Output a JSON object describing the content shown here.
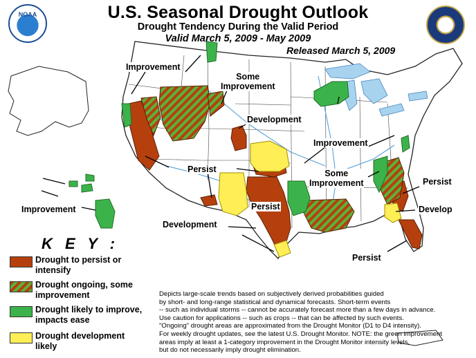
{
  "header": {
    "title": "U.S. Seasonal Drought Outlook",
    "subtitle": "Drought Tendency During the Valid Period",
    "valid_period": "Valid March 5, 2009 - May 2009",
    "released": "Released March 5, 2009"
  },
  "logos": {
    "noaa_text": "NOAA",
    "commerce": "department-of-commerce-seal"
  },
  "map_labels": {
    "improvement_nw": "Improvement",
    "some_improvement_n": [
      "Some",
      "Improvement"
    ],
    "development_c": "Development",
    "improvement_ne": "Improvement",
    "persist_sw": "Persist",
    "some_improvement_se": [
      "Some",
      "Improvement"
    ],
    "persist_e": "Persist",
    "persist_tx": "Persist",
    "develop_e": "Develop",
    "improvement_hi": "Improvement",
    "development_s": "Development",
    "persist_fl": "Persist"
  },
  "key": {
    "title": "K E Y :",
    "items": [
      {
        "label": "Drought to persist or intensify",
        "lines": [
          "Drought to persist or",
          "intensify"
        ],
        "color": "#b5400e"
      },
      {
        "label": "Drought ongoing, some improvement",
        "lines": [
          "Drought ongoing, some",
          "improvement"
        ],
        "color": "hatch"
      },
      {
        "label": "Drought likely to improve, impacts ease",
        "lines": [
          "Drought likely to improve,",
          "impacts ease"
        ],
        "color": "#3cb34a"
      },
      {
        "label": "Drought development likely",
        "lines": [
          "Drought development",
          "likely"
        ],
        "color": "#ffee55"
      }
    ]
  },
  "disclaimer": [
    "Depicts large-scale trends based on subjectively derived probabilities guided",
    "by short- and long-range statistical and dynamical forecasts. Short-term events",
    "-- such as individual storms -- cannot be accurately forecast more than a few days in advance.",
    "Use caution for applications -- such as crops -- that can be affected by such events.",
    "\"Ongoing\" drought areas are approximated from the Drought Monitor (D1 to D4 intensity).",
    "For weekly drought updates, see the latest U.S. Drought Monitor. NOTE: the green improvement",
    "areas imply at least a 1-category improvement in the Drought Monitor intensity levels,",
    "but do not necessarily imply drought elimination."
  ],
  "colors": {
    "persist": "#b5400e",
    "improve": "#3cb34a",
    "develop": "#ffee55",
    "water": "#a7d3ef",
    "rivers": "#5aa0d6"
  }
}
